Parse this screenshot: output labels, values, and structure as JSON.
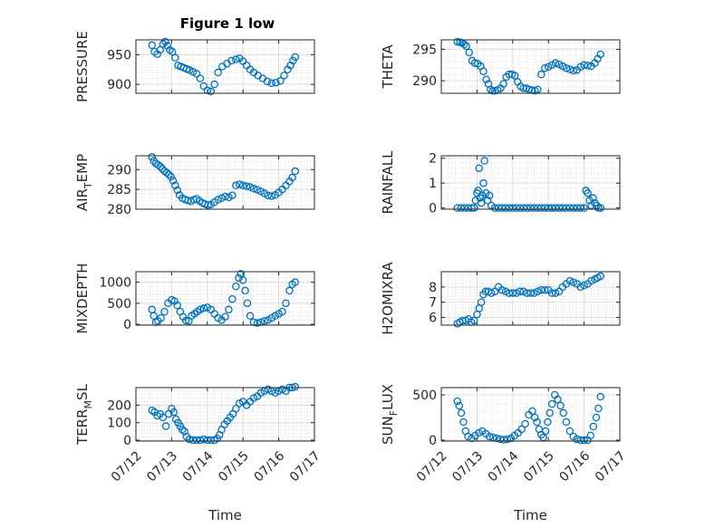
{
  "figure": {
    "title": "Figure 1 low",
    "marker_color": "#0072bd",
    "xlabel": "Time",
    "xtick_labels": [
      "07/12",
      "07/13",
      "07/14",
      "07/15",
      "07/16",
      "07/17"
    ]
  },
  "chart_data": [
    {
      "type": "scatter",
      "ylabel": "PRESSURE",
      "ylabel_sub": "",
      "ylabel_tail": "",
      "xlim": [
        0,
        5
      ],
      "ylim": [
        885,
        975
      ],
      "yticks": [
        900,
        950
      ],
      "ytick_labels": [
        "900",
        "950"
      ],
      "grid": true,
      "x": [
        0.45,
        0.52,
        0.6,
        0.68,
        0.76,
        0.82,
        0.88,
        0.95,
        1.02,
        1.1,
        1.18,
        1.26,
        1.34,
        1.42,
        1.5,
        1.6,
        1.7,
        1.8,
        1.9,
        2.0,
        2.1,
        2.2,
        2.3,
        2.42,
        2.55,
        2.68,
        2.8,
        2.9,
        3.0,
        3.1,
        3.2,
        3.3,
        3.42,
        3.55,
        3.68,
        3.8,
        3.92,
        4.05,
        4.15,
        4.25,
        4.33,
        4.4,
        4.46
      ],
      "y": [
        966,
        955,
        951,
        958,
        968,
        972,
        965,
        958,
        955,
        945,
        932,
        930,
        928,
        926,
        924,
        921,
        918,
        910,
        897,
        890,
        888,
        900,
        920,
        930,
        935,
        940,
        942,
        944,
        939,
        932,
        925,
        920,
        915,
        910,
        905,
        902,
        903,
        906,
        915,
        925,
        932,
        940,
        946
      ]
    },
    {
      "type": "scatter",
      "ylabel": "THETA",
      "ylabel_sub": "",
      "ylabel_tail": "",
      "xlim": [
        0,
        5
      ],
      "ylim": [
        288,
        296.5
      ],
      "yticks": [
        290,
        295
      ],
      "ytick_labels": [
        "290",
        "295"
      ],
      "grid": true,
      "x": [
        0.45,
        0.52,
        0.58,
        0.64,
        0.7,
        0.78,
        0.86,
        0.94,
        1.02,
        1.1,
        1.18,
        1.26,
        1.32,
        1.38,
        1.44,
        1.5,
        1.58,
        1.66,
        1.74,
        1.82,
        1.9,
        1.98,
        2.06,
        2.14,
        2.22,
        2.3,
        2.38,
        2.46,
        2.54,
        2.62,
        2.7,
        2.8,
        2.9,
        3.0,
        3.1,
        3.2,
        3.3,
        3.4,
        3.5,
        3.6,
        3.7,
        3.8,
        3.9,
        4.0,
        4.1,
        4.2,
        4.3,
        4.38,
        4.46
      ],
      "y": [
        296.2,
        296.1,
        296,
        295.8,
        295.5,
        294.5,
        293.2,
        292.8,
        292.7,
        292.3,
        291.5,
        290.2,
        289.5,
        288.6,
        288.4,
        288.4,
        288.5,
        288.8,
        289.5,
        290.6,
        291,
        291,
        290.8,
        289.8,
        289.1,
        288.8,
        288.8,
        288.6,
        288.5,
        288.4,
        288.6,
        291,
        292,
        292.2,
        292.5,
        292.8,
        292.6,
        292.3,
        292,
        291.8,
        291.6,
        291.7,
        292.2,
        292.5,
        292.4,
        292.3,
        292.8,
        293.5,
        294.2
      ]
    },
    {
      "type": "scatter",
      "ylabel": "AIR",
      "ylabel_sub": "T",
      "ylabel_tail": "EMP",
      "xlim": [
        0,
        5
      ],
      "ylim": [
        280,
        293.5
      ],
      "yticks": [
        280,
        285,
        290
      ],
      "ytick_labels": [
        "280",
        "285",
        "290"
      ],
      "grid": true,
      "x": [
        0.45,
        0.5,
        0.56,
        0.62,
        0.68,
        0.74,
        0.8,
        0.86,
        0.92,
        0.98,
        1.04,
        1.1,
        1.16,
        1.22,
        1.3,
        1.38,
        1.46,
        1.54,
        1.62,
        1.7,
        1.78,
        1.86,
        1.94,
        2.02,
        2.1,
        2.2,
        2.3,
        2.4,
        2.5,
        2.6,
        2.7,
        2.8,
        2.9,
        3.0,
        3.1,
        3.2,
        3.3,
        3.4,
        3.5,
        3.6,
        3.7,
        3.8,
        3.9,
        4.0,
        4.1,
        4.2,
        4.3,
        4.38,
        4.46
      ],
      "y": [
        293.2,
        292.2,
        291.5,
        291.2,
        290.8,
        290.2,
        289.6,
        289.2,
        288.8,
        288.2,
        287.2,
        286,
        284.8,
        283.6,
        282.8,
        282.4,
        282.2,
        282,
        282.4,
        282.6,
        282.1,
        281.6,
        281.3,
        281,
        281.2,
        281.8,
        282.4,
        282.8,
        283.2,
        283,
        283.5,
        286,
        286.3,
        286,
        285.8,
        285.6,
        285.2,
        284.9,
        284.5,
        284,
        283.5,
        283.3,
        283.6,
        284.2,
        285,
        286,
        287,
        288,
        289.6
      ]
    },
    {
      "type": "scatter",
      "ylabel": "RAINFALL",
      "ylabel_sub": "",
      "ylabel_tail": "",
      "xlim": [
        0,
        5
      ],
      "ylim": [
        -0.05,
        2.1
      ],
      "yticks": [
        0,
        1,
        2
      ],
      "ytick_labels": [
        "0",
        "1",
        "2"
      ],
      "grid": true,
      "x": [
        0.45,
        0.55,
        0.65,
        0.75,
        0.85,
        0.92,
        0.96,
        1.0,
        1.03,
        1.06,
        1.09,
        1.12,
        1.15,
        1.18,
        1.21,
        1.25,
        1.3,
        1.35,
        1.4,
        1.5,
        1.6,
        1.7,
        1.8,
        1.9,
        2.0,
        2.1,
        2.2,
        2.3,
        2.4,
        2.5,
        2.6,
        2.7,
        2.8,
        2.9,
        3.0,
        3.1,
        3.2,
        3.3,
        3.4,
        3.5,
        3.6,
        3.7,
        3.8,
        3.9,
        4.0,
        4.05,
        4.1,
        4.15,
        4.2,
        4.25,
        4.3,
        4.35,
        4.4,
        4.46
      ],
      "y": [
        0,
        0,
        0,
        0,
        0,
        0,
        0.3,
        0.6,
        0.7,
        1.6,
        0.4,
        0.2,
        0.5,
        1.0,
        1.9,
        0.6,
        0.3,
        0.5,
        0.1,
        0,
        0,
        0,
        0,
        0,
        0,
        0,
        0,
        0,
        0,
        0,
        0,
        0,
        0,
        0,
        0,
        0,
        0,
        0,
        0,
        0,
        0,
        0,
        0,
        0,
        0,
        0.7,
        0.6,
        0.3,
        0.1,
        0.4,
        0.2,
        0.1,
        0,
        0
      ]
    },
    {
      "type": "scatter",
      "ylabel": "MIXDEPTH",
      "ylabel_sub": "",
      "ylabel_tail": "",
      "xlim": [
        0,
        5
      ],
      "ylim": [
        -20,
        1250
      ],
      "yticks": [
        0,
        500,
        1000
      ],
      "ytick_labels": [
        "0",
        "500",
        "1000"
      ],
      "grid": true,
      "x": [
        0.45,
        0.5,
        0.56,
        0.62,
        0.7,
        0.8,
        0.9,
        1.0,
        1.08,
        1.16,
        1.24,
        1.32,
        1.4,
        1.48,
        1.56,
        1.64,
        1.72,
        1.8,
        1.9,
        2.0,
        2.1,
        2.2,
        2.3,
        2.4,
        2.5,
        2.6,
        2.7,
        2.8,
        2.88,
        2.94,
        3.0,
        3.06,
        3.12,
        3.2,
        3.3,
        3.4,
        3.5,
        3.6,
        3.7,
        3.8,
        3.9,
        4.0,
        4.1,
        4.2,
        4.3,
        4.38,
        4.46
      ],
      "y": [
        350,
        200,
        50,
        80,
        150,
        300,
        500,
        580,
        550,
        450,
        300,
        180,
        90,
        80,
        200,
        250,
        300,
        350,
        380,
        400,
        350,
        250,
        150,
        100,
        180,
        350,
        600,
        900,
        1100,
        1200,
        1050,
        800,
        500,
        200,
        50,
        30,
        50,
        80,
        100,
        150,
        200,
        250,
        300,
        500,
        800,
        950,
        1000
      ]
    },
    {
      "type": "scatter",
      "ylabel": "H2OMIXRA",
      "ylabel_sub": "",
      "ylabel_tail": "",
      "xlim": [
        0,
        5
      ],
      "ylim": [
        5.5,
        9
      ],
      "yticks": [
        6,
        7,
        8
      ],
      "ytick_labels": [
        "6",
        "7",
        "8"
      ],
      "grid": true,
      "x": [
        0.45,
        0.52,
        0.6,
        0.68,
        0.76,
        0.84,
        0.92,
        1.0,
        1.06,
        1.12,
        1.18,
        1.24,
        1.32,
        1.4,
        1.5,
        1.6,
        1.7,
        1.8,
        1.9,
        2.0,
        2.1,
        2.2,
        2.3,
        2.4,
        2.5,
        2.6,
        2.7,
        2.8,
        2.9,
        3.0,
        3.1,
        3.2,
        3.3,
        3.4,
        3.5,
        3.6,
        3.7,
        3.8,
        3.9,
        4.0,
        4.1,
        4.2,
        4.3,
        4.38,
        4.46
      ],
      "y": [
        5.6,
        5.7,
        5.8,
        5.8,
        5.9,
        5.7,
        5.8,
        6.2,
        6.6,
        7.0,
        7.5,
        7.7,
        7.7,
        7.6,
        7.7,
        8.0,
        7.8,
        7.7,
        7.6,
        7.6,
        7.6,
        7.7,
        7.7,
        7.6,
        7.6,
        7.6,
        7.7,
        7.8,
        7.8,
        7.8,
        7.6,
        7.6,
        7.7,
        8.0,
        8.2,
        8.4,
        8.3,
        8.2,
        8.0,
        8.1,
        8.2,
        8.4,
        8.5,
        8.6,
        8.7
      ]
    },
    {
      "type": "scatter",
      "ylabel": "TERR",
      "ylabel_sub": "M",
      "ylabel_tail": "SL",
      "xlim": [
        0,
        5
      ],
      "ylim": [
        -5,
        300
      ],
      "yticks": [
        0,
        100,
        200
      ],
      "ytick_labels": [
        "0",
        "100",
        "200"
      ],
      "grid": true,
      "x": [
        0.45,
        0.52,
        0.6,
        0.68,
        0.76,
        0.84,
        0.92,
        1.0,
        1.06,
        1.12,
        1.18,
        1.24,
        1.3,
        1.36,
        1.42,
        1.5,
        1.6,
        1.7,
        1.8,
        1.9,
        2.0,
        2.1,
        2.2,
        2.28,
        2.34,
        2.4,
        2.48,
        2.56,
        2.64,
        2.72,
        2.8,
        2.9,
        3.0,
        3.1,
        3.2,
        3.3,
        3.4,
        3.5,
        3.6,
        3.7,
        3.8,
        3.9,
        4.0,
        4.1,
        4.2,
        4.3,
        4.38,
        4.46
      ],
      "y": [
        170,
        160,
        140,
        150,
        130,
        80,
        150,
        180,
        160,
        120,
        100,
        80,
        60,
        50,
        20,
        5,
        0,
        0,
        0,
        5,
        0,
        0,
        0,
        10,
        30,
        60,
        90,
        110,
        130,
        150,
        180,
        210,
        220,
        200,
        220,
        240,
        250,
        270,
        280,
        290,
        280,
        270,
        280,
        290,
        280,
        300,
        300,
        305
      ]
    },
    {
      "type": "scatter",
      "ylabel": "SUN",
      "ylabel_sub": "F",
      "ylabel_tail": "LUX",
      "xlim": [
        0,
        5
      ],
      "ylim": [
        -10,
        580
      ],
      "yticks": [
        0,
        500
      ],
      "ytick_labels": [
        "0",
        "500"
      ],
      "grid": true,
      "x": [
        0.45,
        0.5,
        0.56,
        0.62,
        0.68,
        0.75,
        0.85,
        0.95,
        1.05,
        1.15,
        1.25,
        1.35,
        1.45,
        1.55,
        1.65,
        1.75,
        1.85,
        1.95,
        2.05,
        2.15,
        2.25,
        2.35,
        2.45,
        2.55,
        2.62,
        2.68,
        2.74,
        2.8,
        2.86,
        2.92,
        2.98,
        3.04,
        3.1,
        3.18,
        3.26,
        3.34,
        3.42,
        3.5,
        3.6,
        3.7,
        3.8,
        3.9,
        4.0,
        4.1,
        4.18,
        4.26,
        4.34,
        4.4,
        4.46
      ],
      "y": [
        430,
        380,
        300,
        200,
        100,
        40,
        20,
        50,
        80,
        100,
        70,
        40,
        30,
        20,
        10,
        5,
        10,
        20,
        50,
        80,
        120,
        180,
        280,
        320,
        250,
        200,
        120,
        60,
        30,
        100,
        200,
        300,
        400,
        500,
        450,
        380,
        300,
        200,
        100,
        40,
        10,
        0,
        0,
        0,
        50,
        150,
        250,
        350,
        480
      ]
    }
  ]
}
